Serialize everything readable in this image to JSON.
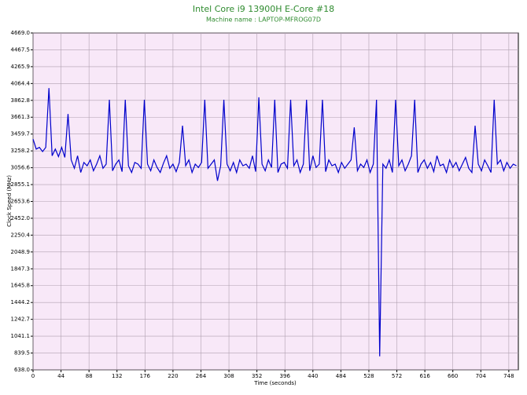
{
  "chart_data": {
    "type": "line",
    "title": "Intel Core i9 13900H E-Core #18",
    "subtitle": "Machine name : LAPTOP-MFROG07D",
    "xlabel": "Time (seconds)",
    "ylabel": "Clock Speed (MHz)",
    "grid": true,
    "xlim": [
      0,
      763
    ],
    "ylim": [
      638.0,
      4669.0
    ],
    "xticks": [
      0,
      44,
      88,
      132,
      176,
      220,
      264,
      308,
      352,
      396,
      440,
      484,
      528,
      572,
      616,
      660,
      704,
      748
    ],
    "yticks": [
      {
        "value": 638.0,
        "label": "638.0"
      },
      839.5,
      1041.1,
      1242.7,
      1444.2,
      1645.8,
      1847.3,
      2048.9,
      2250.4,
      {
        "value": 2452.0,
        "label": "2452.0"
      },
      2653.6,
      2855.1,
      3056.6,
      3258.2,
      3459.7,
      3661.3,
      3862.8,
      4064.4,
      4265.9,
      4467.5,
      {
        "value": 4669.0,
        "label": "4669.0"
      }
    ],
    "x": [
      0,
      5,
      10,
      15,
      20,
      25,
      30,
      35,
      40,
      45,
      50,
      55,
      60,
      65,
      70,
      75,
      80,
      85,
      90,
      95,
      100,
      105,
      110,
      115,
      120,
      125,
      130,
      135,
      140,
      145,
      150,
      155,
      160,
      165,
      170,
      175,
      180,
      185,
      190,
      195,
      200,
      205,
      210,
      215,
      220,
      225,
      230,
      235,
      240,
      245,
      250,
      255,
      260,
      265,
      270,
      275,
      280,
      285,
      290,
      295,
      300,
      305,
      310,
      315,
      320,
      325,
      330,
      335,
      340,
      345,
      350,
      355,
      360,
      365,
      370,
      375,
      380,
      385,
      390,
      395,
      400,
      405,
      410,
      415,
      420,
      425,
      430,
      435,
      440,
      445,
      450,
      455,
      460,
      465,
      470,
      475,
      480,
      485,
      490,
      495,
      500,
      505,
      510,
      515,
      520,
      525,
      530,
      535,
      540,
      545,
      550,
      555,
      560,
      565,
      570,
      575,
      580,
      585,
      590,
      595,
      600,
      605,
      610,
      615,
      620,
      625,
      630,
      635,
      640,
      645,
      650,
      655,
      660,
      665,
      670,
      675,
      680,
      685,
      690,
      695,
      700,
      705,
      710,
      715,
      720,
      725,
      730,
      735,
      740,
      745,
      750,
      755,
      760
    ],
    "series": [
      {
        "name": "Clock Speed",
        "color": "#0000cc",
        "values": [
          3400,
          3280,
          3300,
          3250,
          3300,
          4010,
          3200,
          3280,
          3190,
          3300,
          3180,
          3700,
          3150,
          3050,
          3200,
          3000,
          3120,
          3080,
          3150,
          3020,
          3100,
          3200,
          3050,
          3100,
          3870,
          3020,
          3100,
          3150,
          3010,
          3870,
          3080,
          3000,
          3120,
          3100,
          3050,
          3870,
          3100,
          3020,
          3150,
          3060,
          3000,
          3110,
          3200,
          3050,
          3100,
          3010,
          3120,
          3560,
          3080,
          3150,
          3000,
          3100,
          3060,
          3120,
          3870,
          3050,
          3100,
          3150,
          2900,
          3080,
          3870,
          3100,
          3020,
          3120,
          3000,
          3150,
          3080,
          3100,
          3050,
          3200,
          3010,
          3900,
          3100,
          3020,
          3150,
          3060,
          3870,
          3000,
          3100,
          3120,
          3050,
          3870,
          3080,
          3150,
          3000,
          3100,
          3870,
          3020,
          3200,
          3060,
          3100,
          3870,
          3010,
          3150,
          3080,
          3100,
          3000,
          3120,
          3050,
          3100,
          3150,
          3540,
          3020,
          3100,
          3060,
          3150,
          3000,
          3100,
          3870,
          800,
          3100,
          3050,
          3150,
          3000,
          3870,
          3080,
          3150,
          3020,
          3100,
          3200,
          3870,
          3000,
          3100,
          3150,
          3050,
          3120,
          3010,
          3200,
          3080,
          3100,
          3000,
          3150,
          3060,
          3120,
          3020,
          3100,
          3180,
          3050,
          3000,
          3560,
          3100,
          3020,
          3150,
          3080,
          3000,
          3870,
          3100,
          3150,
          3020,
          3120,
          3050,
          3100,
          3080
        ]
      }
    ]
  }
}
